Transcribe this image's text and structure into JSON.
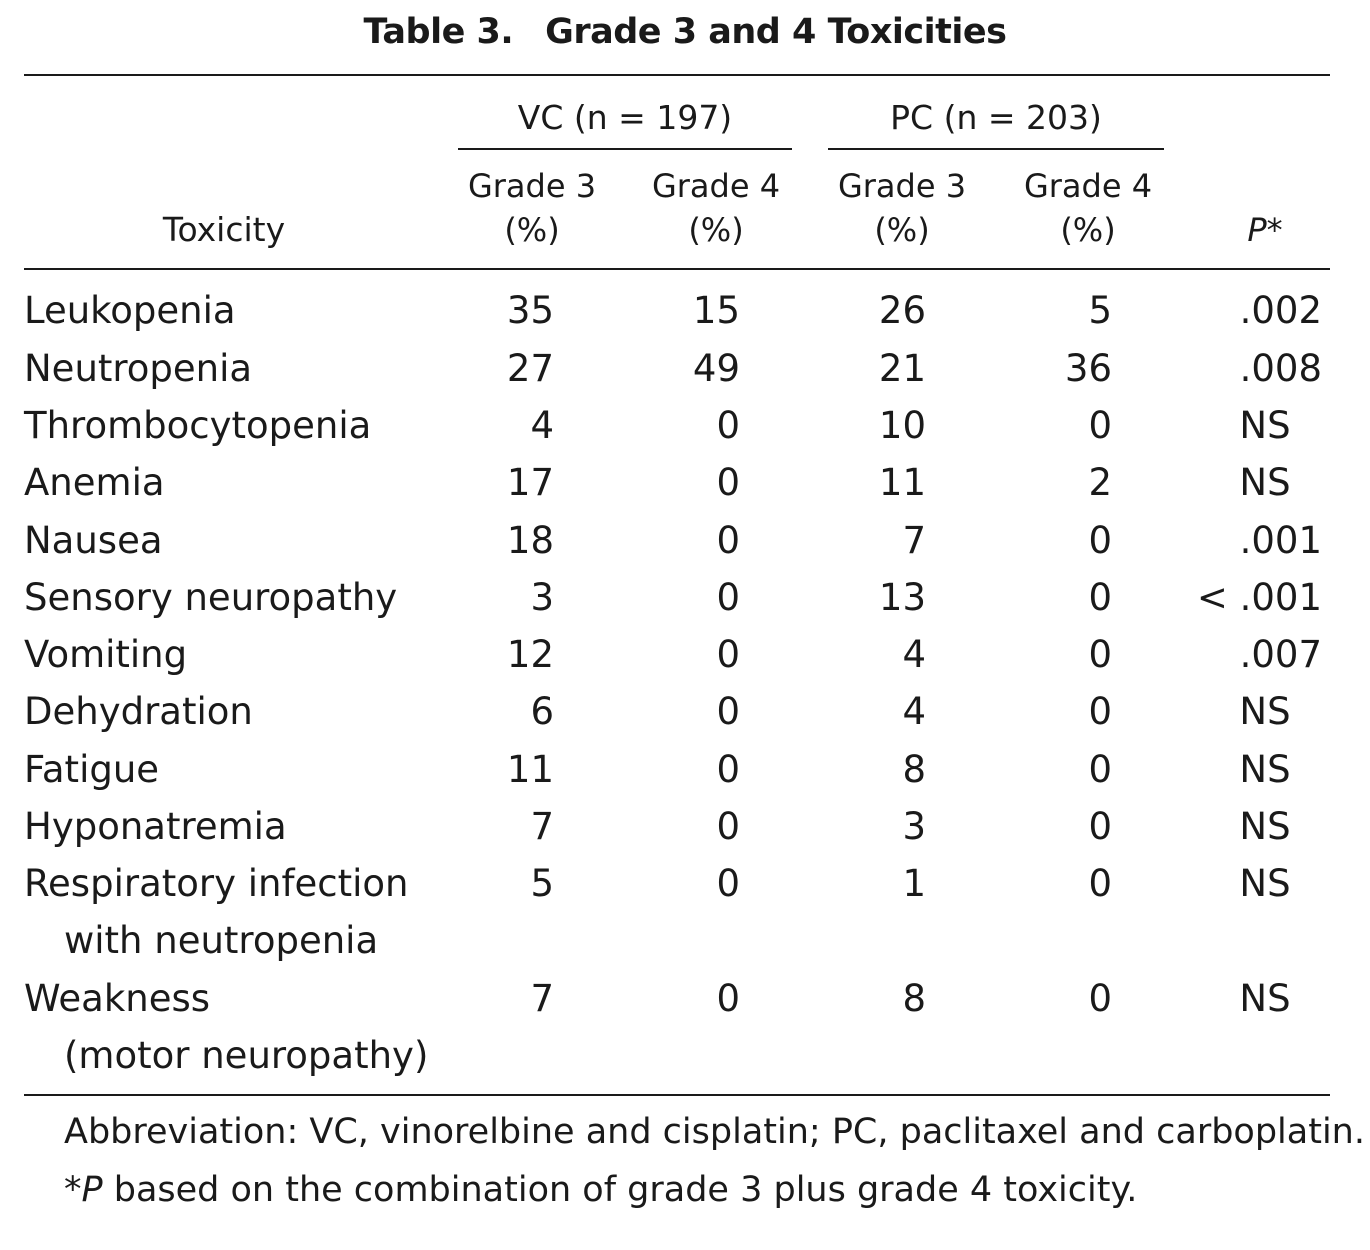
{
  "table": {
    "label": "Table 3.",
    "title": "Grade 3 and 4 Toxicities",
    "groups": [
      "VC (n = 197)",
      "PC (n = 203)"
    ],
    "col_header_toxicity": "Toxicity",
    "col_headers": [
      {
        "line1": "Grade 3",
        "line2": "(%)"
      },
      {
        "line1": "Grade 4",
        "line2": "(%)"
      },
      {
        "line1": "Grade 3",
        "line2": "(%)"
      },
      {
        "line1": "Grade 4",
        "line2": "(%)"
      }
    ],
    "p_header": "P*",
    "rows": [
      {
        "name": "Leukopenia",
        "cont": "",
        "vals": [
          "35",
          "15",
          "26",
          "5"
        ],
        "p": ".002"
      },
      {
        "name": "Neutropenia",
        "cont": "",
        "vals": [
          "27",
          "49",
          "21",
          "36"
        ],
        "p": ".008"
      },
      {
        "name": "Thrombocytopenia",
        "cont": "",
        "vals": [
          "4",
          "0",
          "10",
          "0"
        ],
        "p": "NS"
      },
      {
        "name": "Anemia",
        "cont": "",
        "vals": [
          "17",
          "0",
          "11",
          "2"
        ],
        "p": "NS"
      },
      {
        "name": "Nausea",
        "cont": "",
        "vals": [
          "18",
          "0",
          "7",
          "0"
        ],
        "p": ".001"
      },
      {
        "name": "Sensory neuropathy",
        "cont": "",
        "vals": [
          "3",
          "0",
          "13",
          "0"
        ],
        "p": "< .001"
      },
      {
        "name": "Vomiting",
        "cont": "",
        "vals": [
          "12",
          "0",
          "4",
          "0"
        ],
        "p": ".007"
      },
      {
        "name": "Dehydration",
        "cont": "",
        "vals": [
          "6",
          "0",
          "4",
          "0"
        ],
        "p": "NS"
      },
      {
        "name": "Fatigue",
        "cont": "",
        "vals": [
          "11",
          "0",
          "8",
          "0"
        ],
        "p": "NS"
      },
      {
        "name": "Hyponatremia",
        "cont": "",
        "vals": [
          "7",
          "0",
          "3",
          "0"
        ],
        "p": "NS"
      },
      {
        "name": "Respiratory infection",
        "cont": "with neutropenia",
        "vals": [
          "5",
          "0",
          "1",
          "0"
        ],
        "p": "NS"
      },
      {
        "name": "Weakness",
        "cont": "(motor neuropathy)",
        "vals": [
          "7",
          "0",
          "8",
          "0"
        ],
        "p": "NS"
      }
    ],
    "footnotes": {
      "abbreviation": "Abbreviation: VC, vinorelbine and cisplatin; PC, paclitaxel and carboplatin.",
      "star": "*",
      "p_letter": "P",
      "p_text": " based on the combination of grade 3 plus grade 4 toxicity."
    }
  }
}
